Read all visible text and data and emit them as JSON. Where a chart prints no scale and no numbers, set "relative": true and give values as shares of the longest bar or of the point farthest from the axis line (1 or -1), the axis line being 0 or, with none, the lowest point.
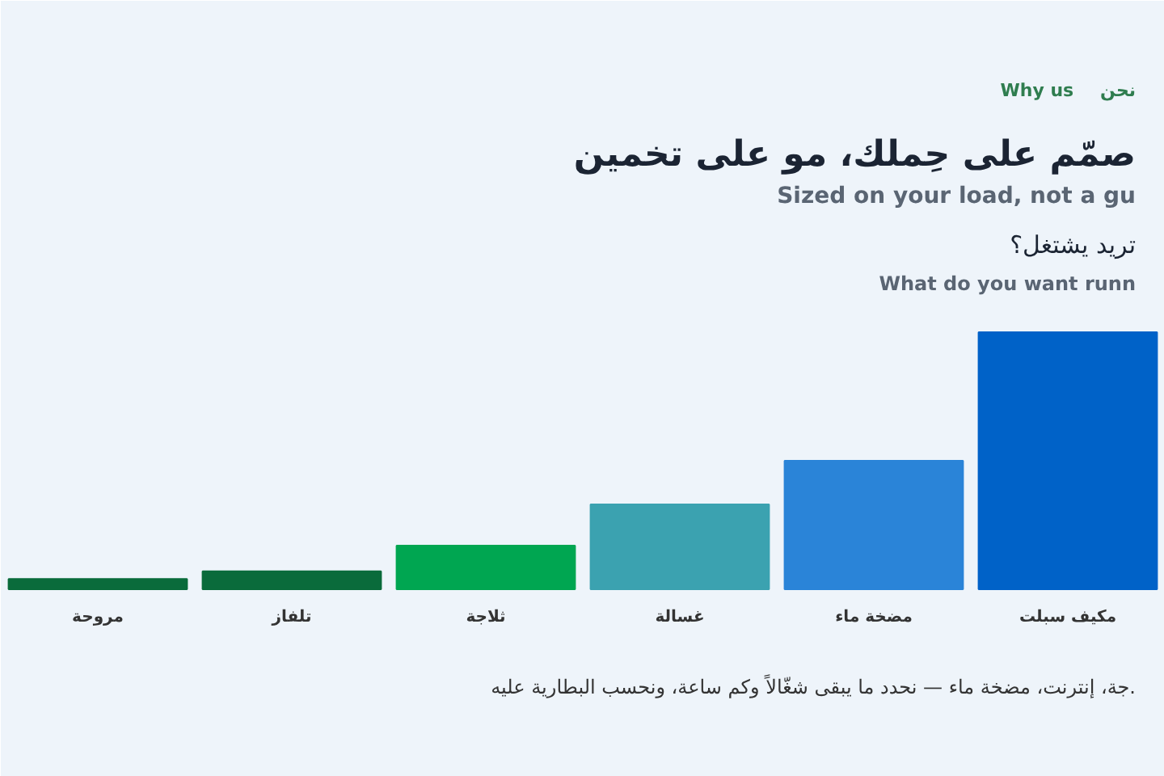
{
  "chart_data": {
    "type": "bar",
    "title": "صمّم على حِملك، مو على تخمين",
    "subtitle": "Sized on your load, not a gu",
    "annotations": [
      "نحن",
      "Why us",
      "تريد يشتغل؟",
      "What do you want runn",
      "جة، إنترنت، مضخة ماء — نحدد ما يبقى شغّالاً وكم ساعة، ونحسب البطارية عليه."
    ],
    "categories": [
      "مروحة",
      "تلفاز",
      "ثلاجة",
      "غسالة",
      "مضخة ماء",
      "مكيف سبلت"
    ],
    "values": [
      0.04,
      0.07,
      0.17,
      0.33,
      0.5,
      1
    ],
    "colors": [
      "#0a6b3b",
      "#0a6b3b",
      "#00a651",
      "#3ba2b0",
      "#2a84d8",
      "#0062c8"
    ],
    "relative": true
  }
}
